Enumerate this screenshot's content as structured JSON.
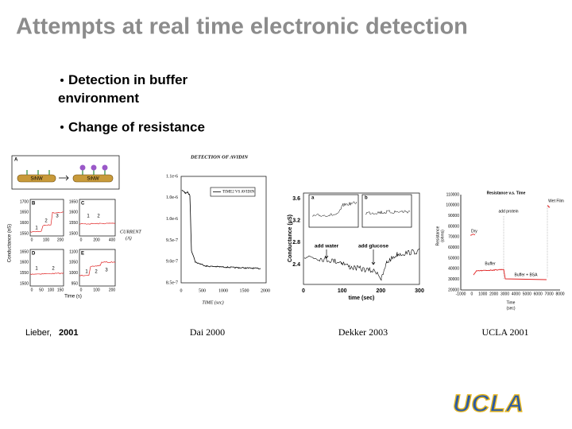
{
  "title": "Attempts at real time electronic detection",
  "bullets": [
    "Detection in buffer environment",
    "Change of resistance"
  ],
  "figures": {
    "lieber": {
      "caption_author": "Lieber,",
      "caption_year": "2001",
      "panel_a": "A",
      "wire_labels": [
        "SiNW",
        "SiNW"
      ],
      "panels": [
        "B",
        "C",
        "D",
        "E"
      ],
      "y_label": "Conductance (nS)",
      "x_label": "Time (s)",
      "b_yticks": [
        "1700",
        "1650",
        "1600",
        "1550"
      ],
      "b_xticks": [
        "0",
        "100",
        "200"
      ],
      "c_yticks": [
        "1650",
        "1600",
        "1550",
        "1500"
      ],
      "c_xticks": [
        "0",
        "200",
        "400"
      ],
      "d_yticks": [
        "1650",
        "1600",
        "1550",
        "1500"
      ],
      "d_xticks": [
        "0",
        "50",
        "100",
        "150"
      ],
      "e_yticks": [
        "1100",
        "1050",
        "1000",
        "950"
      ],
      "e_xticks": [
        "0",
        "100",
        "200"
      ],
      "steps_b": [
        "1",
        "2",
        "3"
      ],
      "steps_c": [
        "1",
        "2"
      ],
      "steps_d": [
        "1",
        "2"
      ],
      "steps_e": [
        "1",
        "2",
        "3"
      ]
    },
    "dai": {
      "caption": "Dai 2000",
      "title": "DETECTION OF AVIDIN",
      "legend": "TIME2 VS AVIDIN",
      "y_label": "CURRENT",
      "y_unit": "(A)",
      "x_label": "TIME (sec)",
      "yticks": [
        "1.1e-6",
        "1.0e-6",
        "1.0e-6",
        "9.5e-7",
        "9.0e-7",
        "8.5e-7"
      ],
      "xticks": [
        "0",
        "500",
        "1000",
        "1500",
        "2000"
      ]
    },
    "dekker": {
      "caption": "Dekker 2003",
      "y_label": "Conductance (μS)",
      "x_label": "time (sec)",
      "yticks": [
        "3.6",
        "3.2",
        "2.8",
        "2.4"
      ],
      "xticks": [
        "0",
        "100",
        "200",
        "300"
      ],
      "annotations": [
        "add water",
        "add glucose"
      ],
      "insets": [
        "a",
        "b"
      ]
    },
    "ucla": {
      "caption": "UCLA 2001",
      "title": "Resistance v.s. Time",
      "y_label": "Resistance",
      "y_unit": "(ohms)",
      "x_label": "Time",
      "x_unit": "(sec)",
      "yticks": [
        "110000",
        "100000",
        "90000",
        "80000",
        "70000",
        "60000",
        "50000",
        "40000",
        "30000",
        "20000"
      ],
      "xticks": [
        "-1000",
        "0",
        "1000",
        "2000",
        "3000",
        "4000",
        "5000",
        "6000",
        "7000",
        "8000"
      ],
      "annotations": [
        "Dry",
        "add protein",
        "Wet Film",
        "Buffer",
        "Buffer + BSA"
      ]
    }
  },
  "logo": "UCLA"
}
